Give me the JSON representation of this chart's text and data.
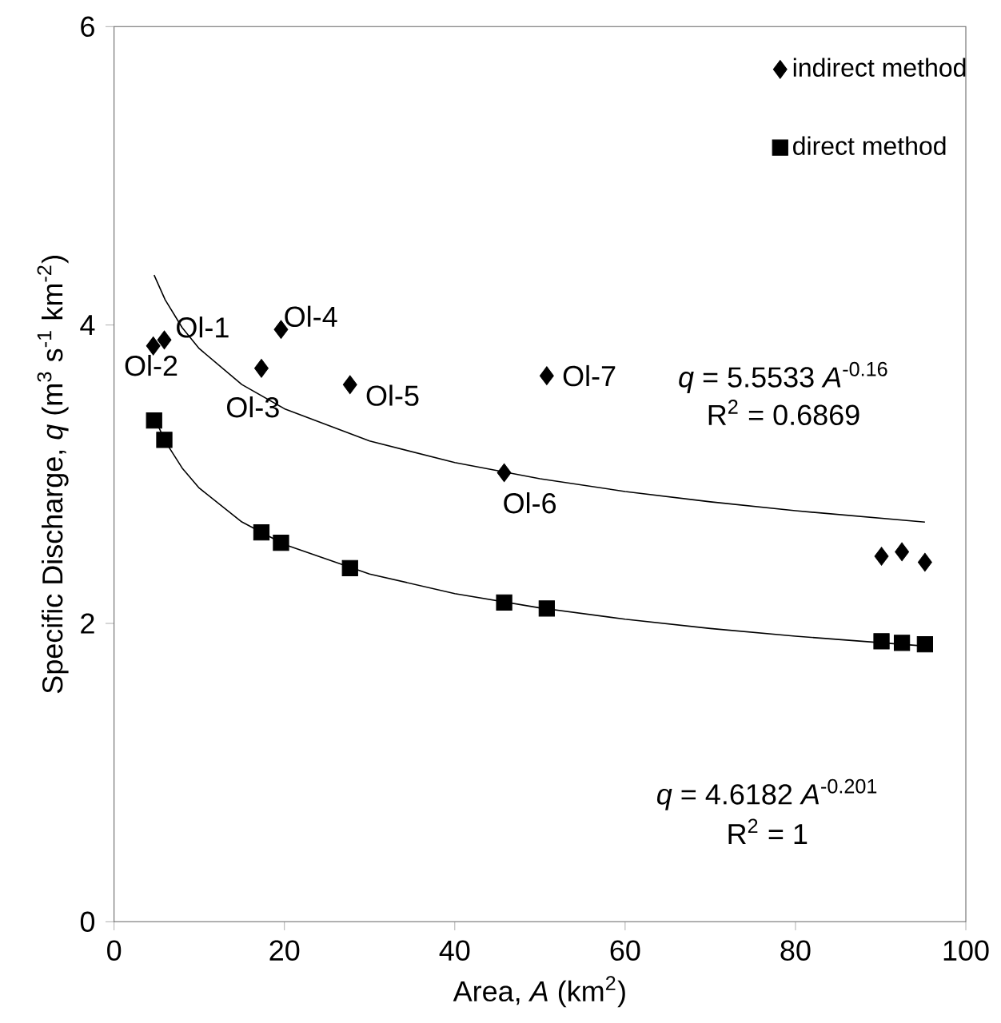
{
  "chart_data": {
    "type": "scatter",
    "xlabel": "Area, *A* (km$^{2}$)",
    "ylabel": "Specific Discharge, *q* (m$^{3}$ s$^{-1}$ km$^{-2}$)",
    "xlim": [
      0,
      100
    ],
    "ylim": [
      0,
      6
    ],
    "xticks": [
      0,
      20,
      40,
      60,
      80,
      100
    ],
    "yticks": [
      0,
      2,
      4,
      6
    ],
    "grid": false,
    "legend": "top right",
    "series": [
      {
        "name": "indirect method",
        "color": "#000000",
        "marker": "diamond",
        "x": [
          5.9,
          4.6,
          17.3,
          19.6,
          27.7,
          45.8,
          50.8,
          90.1,
          92.5,
          95.2
        ],
        "values": [
          3.9,
          3.86,
          3.71,
          3.97,
          3.6,
          3.01,
          3.66,
          2.45,
          2.48,
          2.41
        ]
      },
      {
        "name": "direct method",
        "color": "#000000",
        "marker": "square",
        "x": [
          4.7,
          5.9,
          17.3,
          19.6,
          27.7,
          45.8,
          50.8,
          90.1,
          92.5,
          95.2
        ],
        "values": [
          3.36,
          3.23,
          2.61,
          2.54,
          2.37,
          2.14,
          2.1,
          1.88,
          1.87,
          1.86
        ]
      },
      {
        "type": "line",
        "color": "#000000",
        "marker": "none",
        "x": [
          4.7,
          6,
          8,
          10,
          15,
          20,
          30,
          40,
          50,
          60,
          70,
          80,
          95.2
        ],
        "values": [
          4.335,
          4.169,
          3.982,
          3.842,
          3.601,
          3.439,
          3.223,
          3.078,
          2.97,
          2.884,
          2.815,
          2.755,
          2.679
        ]
      },
      {
        "type": "line",
        "color": "#000000",
        "marker": "none",
        "x": [
          4.7,
          6,
          8,
          10,
          15,
          20,
          30,
          40,
          50,
          60,
          70,
          80,
          95.2
        ],
        "values": [
          3.384,
          3.221,
          3.041,
          2.907,
          2.68,
          2.529,
          2.331,
          2.2,
          2.104,
          2.028,
          1.966,
          1.914,
          1.848
        ]
      }
    ],
    "annotations": [
      {
        "text": "Ol-1",
        "x": 5.9,
        "y": 3.9
      },
      {
        "text": "Ol-2",
        "x": 4.6,
        "y": 3.86
      },
      {
        "text": "Ol-3",
        "x": 17.3,
        "y": 3.71
      },
      {
        "text": "Ol-4",
        "x": 19.6,
        "y": 3.97
      },
      {
        "text": "Ol-5",
        "x": 27.7,
        "y": 3.6
      },
      {
        "text": "Ol-6",
        "x": 45.8,
        "y": 3.01
      },
      {
        "text": "Ol-7",
        "x": 50.8,
        "y": 3.66
      },
      "*q* = 5.5533 *A*$^{-0.16}$",
      "R$^{2}$ = 0.6869",
      "*q* = 4.6182 *A*$^{-0.201}$",
      "R$^{2}$ = 1"
    ]
  }
}
